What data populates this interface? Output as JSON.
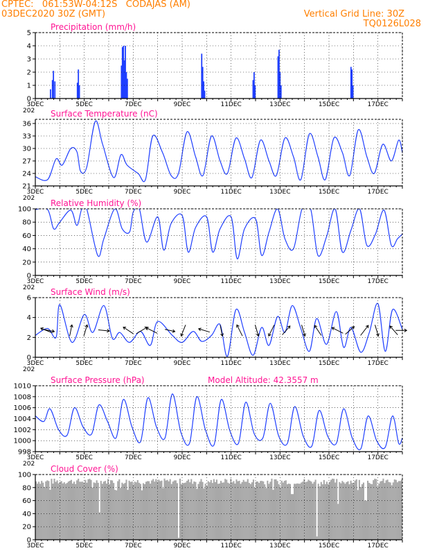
{
  "header": {
    "line1": "CPTEC:   061:53W-04:12S   CODAJAS (AM)",
    "line2": "03DEC2020 30Z (GMT)",
    "grid_note": "Vertical Grid Line: 30Z",
    "code": "TQ0126L028"
  },
  "x_tick_labels": [
    "3DEC",
    "5DEC",
    "7DEC",
    "9DEC",
    "11DEC",
    "13DEC",
    "15DEC",
    "17DEC"
  ],
  "year_fragment": "202",
  "chart_data": [
    {
      "id": "precip",
      "type": "bar",
      "title": "Precipitation (mm/h)",
      "ylim": [
        0,
        5
      ],
      "yticks": [
        0,
        1,
        2,
        3,
        4,
        5
      ],
      "x_days": [
        0.62,
        0.7,
        0.74,
        0.8,
        1.72,
        1.76,
        1.8,
        3.52,
        3.56,
        3.6,
        3.64,
        3.68,
        3.72,
        3.76,
        6.8,
        6.84,
        6.88,
        6.92,
        8.9,
        8.94,
        8.98,
        9.92,
        9.96,
        10.0,
        10.04,
        12.9,
        12.94,
        12.98
      ],
      "values": [
        0.7,
        1.4,
        2.1,
        1.3,
        1.2,
        2.2,
        1.0,
        2.5,
        3.9,
        4.0,
        2.9,
        4.0,
        2.0,
        1.5,
        3.4,
        2.4,
        1.3,
        0.6,
        1.4,
        2.0,
        1.0,
        3.2,
        3.7,
        2.0,
        1.0,
        2.4,
        2.2,
        1.0
      ],
      "color": "#1f3fff"
    },
    {
      "id": "temp",
      "type": "line",
      "title": "Surface Temperature (nC)",
      "ylim": [
        21,
        37
      ],
      "yticks": [
        21,
        24,
        27,
        30,
        33,
        36
      ],
      "x_days": [
        0.0,
        0.5,
        0.85,
        1.1,
        1.45,
        1.7,
        1.85,
        2.1,
        2.45,
        2.75,
        3.2,
        3.5,
        3.75,
        4.2,
        4.5,
        4.8,
        5.2,
        5.55,
        5.85,
        6.2,
        6.55,
        6.85,
        7.2,
        7.55,
        7.85,
        8.2,
        8.55,
        8.85,
        9.2,
        9.55,
        9.85,
        10.2,
        10.55,
        10.85,
        11.2,
        11.55,
        11.85,
        12.2,
        12.55,
        12.85,
        13.2,
        13.55,
        13.85,
        14.2,
        14.55,
        14.85,
        15.0
      ],
      "values": [
        23.2,
        22.5,
        27.5,
        26.0,
        30.0,
        29.2,
        24.5,
        25.5,
        36.5,
        31.0,
        23.0,
        28.5,
        26.0,
        24.0,
        22.5,
        33.0,
        29.0,
        23.5,
        24.0,
        34.0,
        28.0,
        23.5,
        33.0,
        27.0,
        24.0,
        32.5,
        27.5,
        23.0,
        32.0,
        27.0,
        23.5,
        32.5,
        28.0,
        22.5,
        33.5,
        28.0,
        22.5,
        32.5,
        29.0,
        23.5,
        34.5,
        28.0,
        24.0,
        31.0,
        27.0,
        32.0,
        29.0
      ],
      "color": "#1f3fff"
    },
    {
      "id": "rh",
      "type": "line",
      "title": "Relative Humidity (%)",
      "ylim": [
        0,
        100
      ],
      "yticks": [
        0,
        20,
        40,
        60,
        80,
        100
      ],
      "x_days": [
        0.0,
        0.5,
        0.75,
        1.0,
        1.45,
        1.7,
        1.9,
        2.1,
        2.55,
        2.8,
        3.25,
        3.55,
        3.85,
        4.0,
        4.25,
        4.55,
        5.0,
        5.25,
        5.55,
        6.0,
        6.25,
        6.55,
        7.0,
        7.25,
        7.55,
        8.0,
        8.25,
        8.55,
        9.0,
        9.25,
        9.55,
        9.9,
        10.2,
        10.55,
        10.9,
        11.25,
        11.55,
        11.9,
        12.25,
        12.55,
        12.9,
        13.25,
        13.55,
        13.9,
        14.25,
        14.55,
        14.8,
        15.0
      ],
      "values": [
        99,
        99,
        70,
        80,
        98,
        75,
        100,
        100,
        30,
        55,
        100,
        70,
        65,
        95,
        100,
        50,
        88,
        38,
        78,
        90,
        35,
        72,
        88,
        35,
        70,
        88,
        25,
        70,
        85,
        30,
        65,
        100,
        55,
        40,
        100,
        100,
        30,
        58,
        100,
        35,
        68,
        100,
        45,
        62,
        98,
        45,
        55,
        62
      ],
      "color": "#1f3fff"
    },
    {
      "id": "wind",
      "type": "line",
      "title": "Surface Wind (m/s)",
      "ylim": [
        0,
        6
      ],
      "yticks": [
        0,
        2,
        4,
        6
      ],
      "x_days": [
        0.0,
        0.5,
        0.85,
        1.0,
        1.5,
        2.0,
        2.35,
        2.8,
        3.15,
        3.45,
        3.85,
        4.3,
        4.7,
        5.0,
        5.6,
        6.0,
        6.45,
        6.8,
        7.2,
        7.55,
        7.85,
        8.2,
        8.55,
        8.9,
        9.25,
        9.55,
        9.9,
        10.2,
        10.5,
        10.85,
        11.2,
        11.5,
        11.9,
        12.3,
        12.6,
        12.9,
        13.3,
        13.65,
        14.0,
        14.3,
        14.6,
        15.0
      ],
      "values": [
        2.2,
        2.9,
        2.0,
        5.3,
        1.5,
        4.3,
        2.5,
        5.2,
        1.9,
        2.5,
        1.5,
        2.6,
        1.2,
        3.6,
        2.2,
        1.5,
        2.6,
        1.6,
        2.2,
        3.3,
        0.1,
        4.8,
        2.5,
        0.2,
        3.0,
        1.2,
        4.1,
        2.5,
        5.2,
        2.9,
        0.6,
        3.9,
        1.3,
        4.6,
        1.0,
        3.0,
        0.5,
        2.5,
        5.4,
        0.6,
        4.8,
        2.8
      ],
      "vectors": [
        {
          "day": 0.45,
          "dx": -1.0,
          "dy": 0.4
        },
        {
          "day": 0.55,
          "dx": 1.0,
          "dy": -0.2
        },
        {
          "day": 1.45,
          "dx": 0.2,
          "dy": 1.0
        },
        {
          "day": 2.05,
          "dx": 0.3,
          "dy": 1.0
        },
        {
          "day": 2.8,
          "dx": 1.0,
          "dy": -0.1
        },
        {
          "day": 3.8,
          "dx": -0.9,
          "dy": 0.6
        },
        {
          "day": 4.35,
          "dx": 1.0,
          "dy": 0.6
        },
        {
          "day": 4.75,
          "dx": -1.0,
          "dy": 0.5
        },
        {
          "day": 5.5,
          "dx": 0.9,
          "dy": -0.2
        },
        {
          "day": 6.05,
          "dx": -0.4,
          "dy": -1.0
        },
        {
          "day": 6.9,
          "dx": -1.0,
          "dy": 0.3
        },
        {
          "day": 7.6,
          "dx": 0.2,
          "dy": -1.0
        },
        {
          "day": 8.35,
          "dx": -0.5,
          "dy": 1.0
        },
        {
          "day": 9.05,
          "dx": 0.3,
          "dy": -1.0
        },
        {
          "day": 9.65,
          "dx": -0.5,
          "dy": -1.0
        },
        {
          "day": 10.25,
          "dx": 0.7,
          "dy": 0.8
        },
        {
          "day": 10.95,
          "dx": 0.3,
          "dy": -1.0
        },
        {
          "day": 11.55,
          "dx": -0.6,
          "dy": 0.9
        },
        {
          "day": 12.35,
          "dx": -1.0,
          "dy": 0.5
        },
        {
          "day": 12.85,
          "dx": 0.8,
          "dy": 0.7
        },
        {
          "day": 13.45,
          "dx": 0.7,
          "dy": 0.9
        },
        {
          "day": 13.95,
          "dx": 0.3,
          "dy": -1.0
        },
        {
          "day": 14.65,
          "dx": -0.7,
          "dy": 0.8
        },
        {
          "day": 14.95,
          "dx": 1.0,
          "dy": 0.0
        }
      ],
      "color": "#1f3fff"
    },
    {
      "id": "press",
      "type": "line",
      "title": "Surface Pressure (hPa)",
      "subtitle": "Model Altitude: 42.3557 m",
      "ylim": [
        998,
        1010
      ],
      "yticks": [
        998,
        1000,
        1002,
        1004,
        1006,
        1008,
        1010
      ],
      "x_days": [
        0.0,
        0.35,
        0.6,
        0.95,
        1.3,
        1.6,
        1.95,
        2.3,
        2.6,
        2.95,
        3.3,
        3.6,
        3.95,
        4.3,
        4.6,
        4.95,
        5.3,
        5.6,
        5.95,
        6.3,
        6.6,
        6.95,
        7.3,
        7.6,
        7.95,
        8.3,
        8.6,
        8.95,
        9.3,
        9.6,
        9.95,
        10.3,
        10.6,
        10.95,
        11.3,
        11.6,
        11.95,
        12.3,
        12.6,
        12.95,
        13.3,
        13.6,
        13.95,
        14.3,
        14.6,
        14.85,
        15.0
      ],
      "values": [
        1004.5,
        1003.5,
        1005.8,
        1002.0,
        1001.0,
        1006.0,
        1002.5,
        1001.2,
        1006.5,
        1003.5,
        1000.5,
        1007.5,
        1002.5,
        999.8,
        1007.8,
        1002.5,
        1000.5,
        1008.5,
        1001.5,
        999.5,
        1008.0,
        1002.0,
        999.2,
        1007.5,
        1001.8,
        999.5,
        1007.0,
        1001.2,
        1000.5,
        1006.8,
        1000.8,
        999.5,
        1006.2,
        1000.8,
        999.0,
        1005.5,
        1000.8,
        999.5,
        1005.8,
        1000.5,
        998.5,
        1004.5,
        1000.0,
        998.8,
        1004.5,
        999.5,
        1000.5
      ],
      "color": "#1f3fff"
    },
    {
      "id": "cloud",
      "type": "bar",
      "title": "Cloud Cover (%)",
      "ylim": [
        0,
        100
      ],
      "yticks": [
        0,
        20,
        40,
        60,
        80,
        100
      ],
      "base_level": 88,
      "dips": [
        {
          "day": 2.6,
          "value": 42
        },
        {
          "day": 5.85,
          "value": 3
        },
        {
          "day": 10.5,
          "value": 70
        },
        {
          "day": 11.5,
          "value": 5
        },
        {
          "day": 12.4,
          "value": 55
        },
        {
          "day": 13.5,
          "value": 60
        }
      ],
      "color": "#a8a8a8"
    }
  ]
}
